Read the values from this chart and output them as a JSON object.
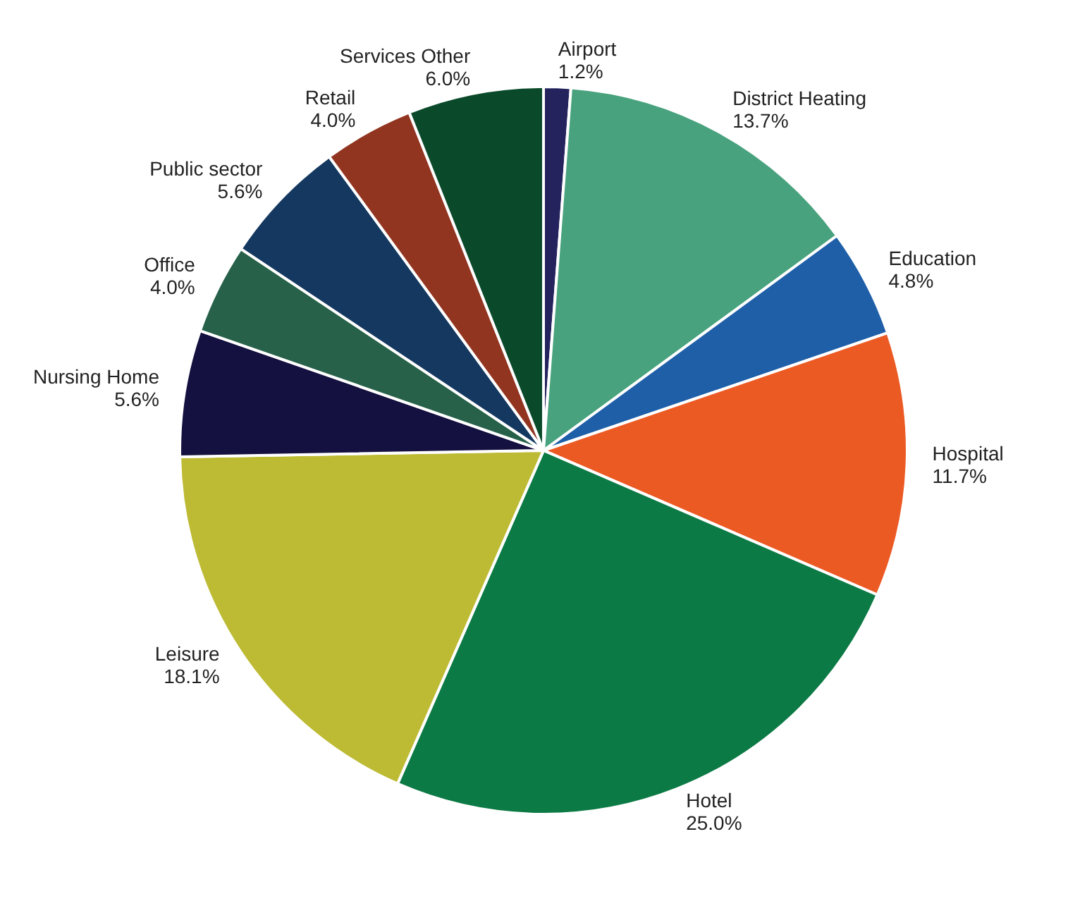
{
  "chart_data": {
    "type": "pie",
    "categories": [
      "Airport",
      "District Heating",
      "Education",
      "Hospital",
      "Hotel",
      "Leisure",
      "Nursing Home",
      "Office",
      "Public sector",
      "Retail",
      "Services Other"
    ],
    "values": [
      1.2,
      13.7,
      4.8,
      11.7,
      25.0,
      18.1,
      5.6,
      4.0,
      5.6,
      4.0,
      6.0
    ],
    "value_labels": [
      "1.2%",
      "13.7%",
      "4.8%",
      "11.7%",
      "25.0%",
      "18.1%",
      "5.6%",
      "4.0%",
      "5.6%",
      "4.0%",
      "6.0%"
    ],
    "colors": [
      "#25235e",
      "#48a27e",
      "#1f5fa8",
      "#ec5a24",
      "#0c7a45",
      "#bdba33",
      "#14103f",
      "#27614a",
      "#14385f",
      "#923520",
      "#0a4a2a"
    ]
  }
}
